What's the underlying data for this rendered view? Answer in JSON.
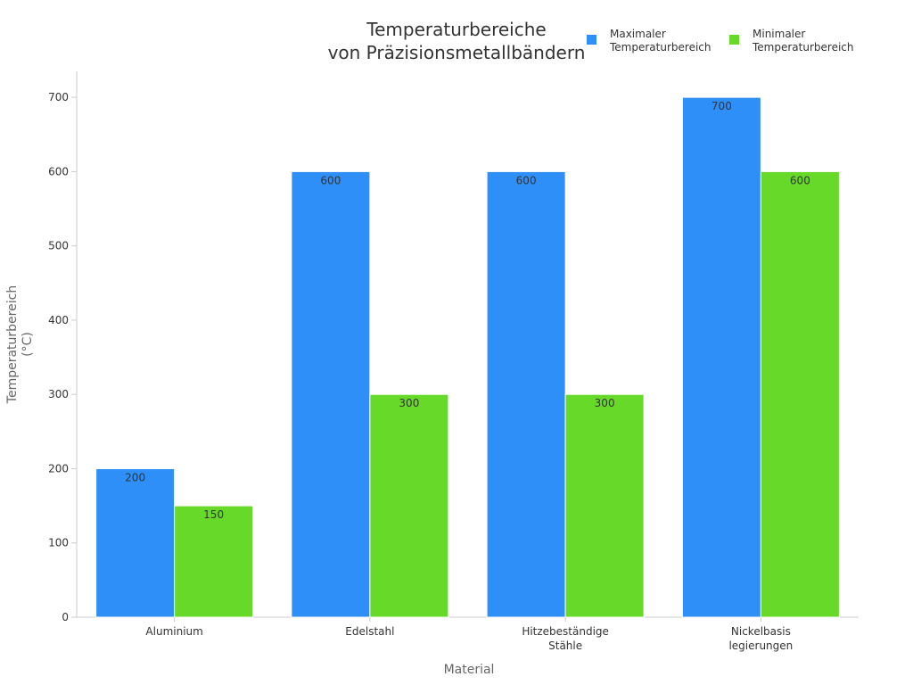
{
  "chart_data": {
    "type": "bar",
    "title": [
      "Temperaturbereiche",
      "von Präzisionsmetallbändern"
    ],
    "xlabel": "Material",
    "ylabel": [
      "Temperaturbereich",
      "(°C)"
    ],
    "categories": [
      [
        "Aluminium"
      ],
      [
        "Edelstahl"
      ],
      [
        "Hitzebeständige",
        "Stähle"
      ],
      [
        "Nickelbasis",
        "legierungen"
      ]
    ],
    "series": [
      {
        "name": [
          "Maximaler",
          "Temperaturbereich"
        ],
        "values": [
          200,
          600,
          600,
          700
        ],
        "color": "#2f8ff8"
      },
      {
        "name": [
          "Minimaler",
          "Temperaturbereich"
        ],
        "values": [
          150,
          300,
          300,
          600
        ],
        "color": "#67d928"
      }
    ],
    "ylim": [
      0,
      735
    ],
    "yticks": [
      0,
      100,
      200,
      300,
      400,
      500,
      600,
      700
    ],
    "legend_position": "top-right",
    "grid": false
  }
}
